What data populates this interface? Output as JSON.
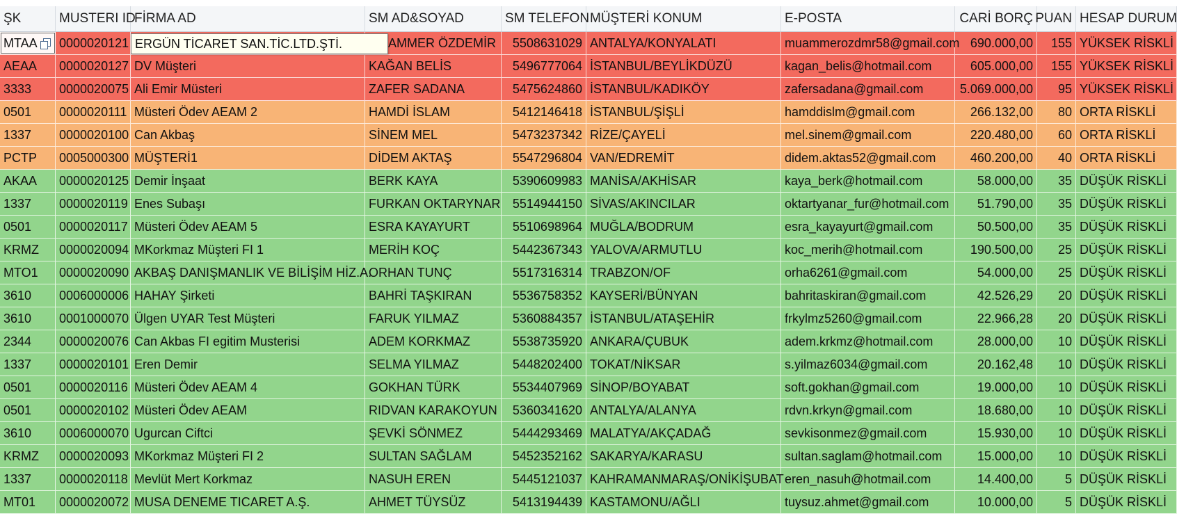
{
  "table": {
    "headers": [
      "ŞK",
      "MUSTERI ID",
      "FİRMA AD",
      "SM AD&SOYAD",
      "SM TELEFON",
      "MÜŞTERİ KONUM",
      "E-POSTA",
      "CARİ BORÇ",
      "PUAN",
      "HESAP DURUM"
    ],
    "tooltip": "ERGÜN TİCARET SAN.TİC.LTD.ŞTİ.",
    "rows": [
      {
        "sk": "MTAA",
        "id": "0000020121",
        "firma": "ERGÜN TİCARET SAN.TİC.LTD.ŞTİ.",
        "sm": "MUAMMER ÖZDEMİR",
        "tel": "5508631029",
        "konum": "ANTALYA/KONYALATI",
        "eposta": "muammerozdmr58@gmail.com",
        "borc": "690.000,00",
        "puan": "155",
        "durum": "YÜKSEK RİSKLİ",
        "risk": "high"
      },
      {
        "sk": "AEAA",
        "id": "0000020127",
        "firma": "DV Müşteri",
        "sm": "KAĞAN BELİS",
        "tel": "5496777064",
        "konum": "İSTANBUL/BEYLİKDÜZÜ",
        "eposta": "kagan_belis@hotmail.com",
        "borc": "605.000,00",
        "puan": "155",
        "durum": "YÜKSEK RİSKLİ",
        "risk": "high"
      },
      {
        "sk": "3333",
        "id": "0000020075",
        "firma": "Ali Emir Müsteri",
        "sm": "ZAFER SADANA",
        "tel": "5475624860",
        "konum": "İSTANBUL/KADIKÖY",
        "eposta": "zafersadana@gmail.com",
        "borc": "5.069.000,00",
        "puan": "95",
        "durum": "YÜKSEK RİSKLİ",
        "risk": "high"
      },
      {
        "sk": "0501",
        "id": "0000020111",
        "firma": "Müsteri Ödev AEAM 2",
        "sm": "HAMDİ İSLAM",
        "tel": "5412146418",
        "konum": "İSTANBUL/ŞİŞLİ",
        "eposta": "hamddislm@gmail.com",
        "borc": "266.132,00",
        "puan": "80",
        "durum": "ORTA RİSKLİ",
        "risk": "mid"
      },
      {
        "sk": "1337",
        "id": "0000020100",
        "firma": "Can Akbaş",
        "sm": "SİNEM MEL",
        "tel": "5473237342",
        "konum": "RİZE/ÇAYELİ",
        "eposta": "mel.sinem@gmail.com",
        "borc": "220.480,00",
        "puan": "60",
        "durum": "ORTA RİSKLİ",
        "risk": "mid"
      },
      {
        "sk": "PCTP",
        "id": "0005000300",
        "firma": "MÜŞTERİ1",
        "sm": "DİDEM AKTAŞ",
        "tel": "5547296804",
        "konum": "VAN/EDREMİT",
        "eposta": "didem.aktas52@gmail.com",
        "borc": "460.200,00",
        "puan": "40",
        "durum": "ORTA RİSKLİ",
        "risk": "mid"
      },
      {
        "sk": "AKAA",
        "id": "0000020125",
        "firma": "Demir İnşaat",
        "sm": "BERK KAYA",
        "tel": "5390609983",
        "konum": "MANİSA/AKHİSAR",
        "eposta": "kaya_berk@hotmail.com",
        "borc": "58.000,00",
        "puan": "35",
        "durum": "DÜŞÜK RİSKLİ",
        "risk": "low"
      },
      {
        "sk": "1337",
        "id": "0000020119",
        "firma": "Enes Subaşı",
        "sm": "FURKAN OKTARYNAR",
        "tel": "5514944150",
        "konum": "SİVAS/AKINCILAR",
        "eposta": "oktartyanar_fur@hotmail.com",
        "borc": "51.790,00",
        "puan": "35",
        "durum": "DÜŞÜK RİSKLİ",
        "risk": "low"
      },
      {
        "sk": "0501",
        "id": "0000020117",
        "firma": "Müsteri Ödev AEAM 5",
        "sm": "ESRA KAYAYURT",
        "tel": "5510698964",
        "konum": "MUĞLA/BODRUM",
        "eposta": "esra_kayayurt@gmail.com",
        "borc": "50.500,00",
        "puan": "35",
        "durum": "DÜŞÜK RİSKLİ",
        "risk": "low"
      },
      {
        "sk": "KRMZ",
        "id": "0000020094",
        "firma": "MKorkmaz Müşteri FI 1",
        "sm": "MERİH KOÇ",
        "tel": "5442367343",
        "konum": "YALOVA/ARMUTLU",
        "eposta": "koc_merih@hotmail.com",
        "borc": "190.500,00",
        "puan": "25",
        "durum": "DÜŞÜK RİSKLİ",
        "risk": "low"
      },
      {
        "sk": "MTO1",
        "id": "0000020090",
        "firma": "AKBAŞ DANIŞMANLIK VE BİLİŞİM HİZ.A.",
        "sm": "ORHAN TUNÇ",
        "tel": "5517316314",
        "konum": "TRABZON/OF",
        "eposta": "orha6261@gmail.com",
        "borc": "54.000,00",
        "puan": "25",
        "durum": "DÜŞÜK RİSKLİ",
        "risk": "low"
      },
      {
        "sk": "3610",
        "id": "0006000006",
        "firma": "HAHAY Şirketi",
        "sm": "BAHRİ TAŞKIRAN",
        "tel": "5536758352",
        "konum": "KAYSERİ/BÜNYAN",
        "eposta": "bahritaskiran@gmail.com",
        "borc": "42.526,29",
        "puan": "20",
        "durum": "DÜŞÜK RİSKLİ",
        "risk": "low"
      },
      {
        "sk": "3610",
        "id": "0001000070",
        "firma": "Ülgen UYAR Test Müşteri",
        "sm": "FARUK YILMAZ",
        "tel": "5360884357",
        "konum": "İSTANBUL/ATAŞEHİR",
        "eposta": "frkylmz5260@gmail.com",
        "borc": "22.966,28",
        "puan": "20",
        "durum": "DÜŞÜK RİSKLİ",
        "risk": "low"
      },
      {
        "sk": "2344",
        "id": "0000020076",
        "firma": "Can Akbas FI egitim Musterisi",
        "sm": "ADEM KORKMAZ",
        "tel": "5538735920",
        "konum": "ANKARA/ÇUBUK",
        "eposta": "adem.krkmz@hotmail.com",
        "borc": "28.000,00",
        "puan": "10",
        "durum": "DÜŞÜK RİSKLİ",
        "risk": "low"
      },
      {
        "sk": "1337",
        "id": "0000020101",
        "firma": "Eren Demir",
        "sm": "SELMA YILMAZ",
        "tel": "5448202400",
        "konum": "TOKAT/NİKSAR",
        "eposta": "s.yilmaz6034@gmail.com",
        "borc": "20.162,48",
        "puan": "10",
        "durum": "DÜŞÜK RİSKLİ",
        "risk": "low"
      },
      {
        "sk": "0501",
        "id": "0000020116",
        "firma": "Müsteri Ödev AEAM 4",
        "sm": "GOKHAN TÜRK",
        "tel": "5534407969",
        "konum": "SİNOP/BOYABAT",
        "eposta": "soft.gokhan@gmail.com",
        "borc": "19.000,00",
        "puan": "10",
        "durum": "DÜŞÜK RİSKLİ",
        "risk": "low"
      },
      {
        "sk": "0501",
        "id": "0000020102",
        "firma": "Müsteri Ödev AEAM",
        "sm": "RIDVAN KARAKOYUN",
        "tel": "5360341620",
        "konum": "ANTALYA/ALANYA",
        "eposta": "rdvn.krkyn@gmail.com",
        "borc": "18.680,00",
        "puan": "10",
        "durum": "DÜŞÜK RİSKLİ",
        "risk": "low"
      },
      {
        "sk": "3610",
        "id": "0006000070",
        "firma": "Ugurcan Ciftci",
        "sm": "ŞEVKİ SÖNMEZ",
        "tel": "5444293469",
        "konum": "MALATYA/AKÇADAĞ",
        "eposta": "sevkisonmez@gmail.com",
        "borc": "15.930,00",
        "puan": "10",
        "durum": "DÜŞÜK RİSKLİ",
        "risk": "low"
      },
      {
        "sk": "KRMZ",
        "id": "0000020093",
        "firma": "MKorkmaz Müşteri FI 2",
        "sm": "SULTAN SAĞLAM",
        "tel": "5452352162",
        "konum": "SAKARYA/KARASU",
        "eposta": "sultan.saglam@hotmail.com",
        "borc": "15.000,00",
        "puan": "10",
        "durum": "DÜŞÜK RİSKLİ",
        "risk": "low"
      },
      {
        "sk": "1337",
        "id": "0000020118",
        "firma": "Mevlüt Mert Korkmaz",
        "sm": "NASUH EREN",
        "tel": "5445121037",
        "konum": "KAHRAMANMARAŞ/ONİKİŞUBAT",
        "eposta": "eren_nasuh@hotmail.com",
        "borc": "14.400,00",
        "puan": "5",
        "durum": "DÜŞÜK RİSKLİ",
        "risk": "low"
      },
      {
        "sk": "MT01",
        "id": "0000020072",
        "firma": "MUSA DENEME TICARET A.Ş.",
        "sm": "AHMET TÜYSÜZ",
        "tel": "5413194439",
        "konum": "KASTAMONU/AĞLI",
        "eposta": "tuysuz.ahmet@gmail.com",
        "borc": "10.000,00",
        "puan": "5",
        "durum": "DÜŞÜK RİSKLİ",
        "risk": "low"
      }
    ]
  },
  "colors": {
    "high": "#f36a5e",
    "mid": "#f8b476",
    "low": "#92d58c"
  },
  "icons": {
    "copy": "copy-icon"
  }
}
